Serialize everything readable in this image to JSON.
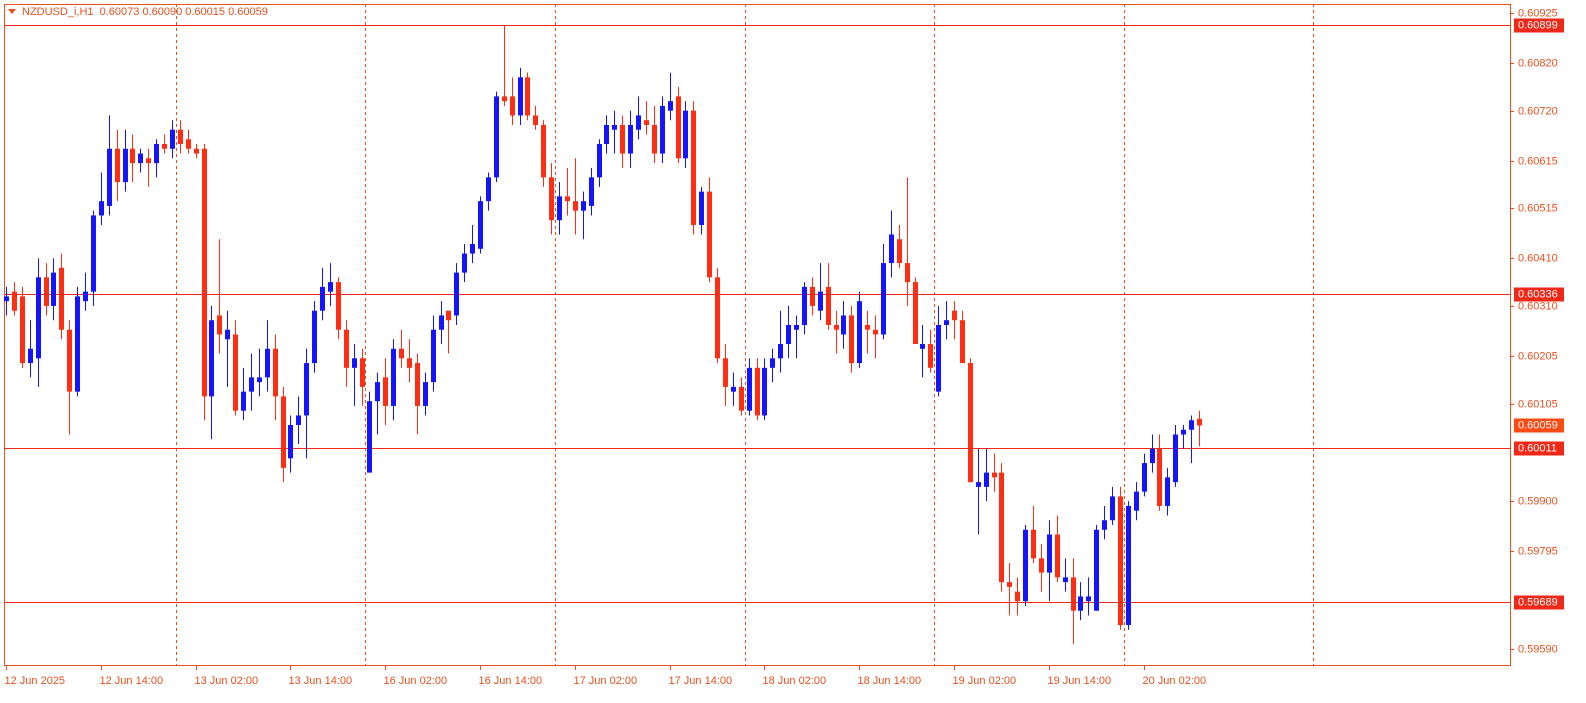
{
  "chart_data": {
    "type": "candlestick",
    "title": "NZDUSD_i,H1  0.60073 0.60090 0.60015 0.60059",
    "categories": [
      "12 Jun 2025",
      null,
      null,
      null,
      null,
      null,
      null,
      null,
      null,
      null,
      null,
      null,
      "12 Jun 14:00",
      null,
      null,
      null,
      null,
      null,
      null,
      null,
      null,
      null,
      null,
      null,
      "13 Jun 02:00",
      null,
      null,
      null,
      null,
      null,
      null,
      null,
      null,
      null,
      null,
      null,
      "13 Jun 14:00",
      null,
      null,
      null,
      null,
      null,
      null,
      null,
      null,
      null,
      null,
      null,
      "16 Jun 02:00",
      null,
      null,
      null,
      null,
      null,
      null,
      null,
      null,
      null,
      null,
      null,
      "16 Jun 14:00",
      null,
      null,
      null,
      null,
      null,
      null,
      null,
      null,
      null,
      null,
      null,
      "17 Jun 02:00",
      null,
      null,
      null,
      null,
      null,
      null,
      null,
      null,
      null,
      null,
      null,
      "17 Jun 14:00",
      null,
      null,
      null,
      null,
      null,
      null,
      null,
      null,
      null,
      null,
      null,
      "18 Jun 02:00",
      null,
      null,
      null,
      null,
      null,
      null,
      null,
      null,
      null,
      null,
      null,
      "18 Jun 14:00",
      null,
      null,
      null,
      null,
      null,
      null,
      null,
      null,
      null,
      null,
      null,
      "19 Jun 02:00",
      null,
      null,
      null,
      null,
      null,
      null,
      null,
      null,
      null,
      null,
      null,
      "19 Jun 14:00",
      null,
      null,
      null,
      null,
      null,
      null,
      null,
      null,
      null,
      null,
      null,
      "20 Jun 02:00",
      null,
      null,
      null,
      null,
      null,
      null,
      null
    ],
    "open": [
      0.6032,
      0.6034,
      0.6033,
      0.6019,
      0.602,
      0.6037,
      0.6031,
      0.6039,
      0.6026,
      0.6013,
      0.6032,
      0.6034,
      0.605,
      0.6052,
      0.6064,
      0.6057,
      0.6064,
      0.6061,
      0.6062,
      0.6061,
      0.6065,
      0.6064,
      0.6068,
      0.6066,
      0.6064,
      0.6064,
      0.6012,
      0.6029,
      0.6024,
      0.6025,
      0.6009,
      0.6013,
      0.6015,
      0.6016,
      0.6022,
      0.6012,
      0.5999,
      0.6006,
      0.6008,
      0.6019,
      0.603,
      0.6034,
      0.6036,
      0.6026,
      0.6018,
      0.602,
      0.5996,
      0.6011,
      0.6016,
      0.601,
      0.6022,
      0.602,
      0.6019,
      0.601,
      0.6015,
      0.6026,
      0.603,
      0.6029,
      0.6038,
      0.6042,
      0.6043,
      0.6053,
      0.6058,
      0.6075,
      0.6075,
      0.6071,
      0.6079,
      0.6071,
      0.6069,
      0.6058,
      0.6049,
      0.6054,
      0.6053,
      0.6051,
      0.6052,
      0.6058,
      0.6065,
      0.6068,
      0.6069,
      0.6063,
      0.6068,
      0.607,
      0.6069,
      0.6063,
      0.6072,
      0.6075,
      0.6062,
      0.6072,
      0.6048,
      0.6055,
      0.6037,
      0.602,
      0.6013,
      0.6014,
      0.6009,
      0.6018,
      0.6008,
      0.6018,
      0.602,
      0.6023,
      0.6026,
      0.6027,
      0.6035,
      0.603,
      0.6035,
      0.6027,
      0.6025,
      0.6029,
      0.6019,
      0.6027,
      0.6026,
      0.6025,
      0.604,
      0.6045,
      0.604,
      0.6036,
      0.6022,
      0.6023,
      0.6013,
      0.6027,
      0.603,
      0.6028,
      0.6019,
      0.5993,
      0.5993,
      0.5996,
      0.5996,
      0.5973,
      0.5971,
      0.5969,
      0.5984,
      0.5978,
      0.5975,
      0.5983,
      0.5973,
      0.5974,
      0.5967,
      0.5969,
      0.5967,
      0.5984,
      0.5986,
      0.5991,
      0.5964,
      0.5988,
      0.5992,
      0.5998,
      0.6001,
      0.5989,
      0.5994,
      0.6004,
      0.6005,
      0.60073
    ],
    "high": [
      0.6035,
      0.6036,
      0.6035,
      0.6028,
      0.6041,
      0.604,
      0.6041,
      0.6042,
      0.6028,
      0.6035,
      0.6038,
      0.6051,
      0.6059,
      0.6071,
      0.6068,
      0.6068,
      0.6067,
      0.6064,
      0.6064,
      0.6066,
      0.6067,
      0.607,
      0.607,
      0.6068,
      0.6065,
      0.6065,
      0.6031,
      0.6045,
      0.603,
      0.6028,
      0.6018,
      0.6021,
      0.6022,
      0.6028,
      0.6025,
      0.6014,
      0.6008,
      0.6012,
      0.6022,
      0.6032,
      0.6039,
      0.604,
      0.6037,
      0.6028,
      0.6023,
      0.6022,
      0.6013,
      0.6017,
      0.602,
      0.6024,
      0.6026,
      0.6024,
      0.6021,
      0.6017,
      0.6029,
      0.6032,
      0.603,
      0.604,
      0.6044,
      0.6048,
      0.6054,
      0.6059,
      0.6076,
      0.609,
      0.6079,
      0.6081,
      0.608,
      0.6073,
      0.607,
      0.6061,
      0.6057,
      0.606,
      0.6062,
      0.6055,
      0.606,
      0.6066,
      0.6071,
      0.6072,
      0.6071,
      0.6072,
      0.6075,
      0.6074,
      0.6073,
      0.6075,
      0.608,
      0.6077,
      0.6074,
      0.6074,
      0.6056,
      0.6058,
      0.6039,
      0.6023,
      0.6017,
      0.6016,
      0.602,
      0.602,
      0.602,
      0.6022,
      0.603,
      0.6031,
      0.6029,
      0.6036,
      0.6037,
      0.604,
      0.604,
      0.603,
      0.6032,
      0.6031,
      0.6034,
      0.603,
      0.6029,
      0.6044,
      0.6051,
      0.6048,
      0.6058,
      0.6037,
      0.6027,
      0.6026,
      0.6031,
      0.6032,
      0.6032,
      0.603,
      0.602,
      0.6001,
      0.6001,
      0.6,
      0.5998,
      0.5977,
      0.5974,
      0.5985,
      0.5989,
      0.5981,
      0.5986,
      0.5987,
      0.5978,
      0.5978,
      0.5973,
      0.5974,
      0.5985,
      0.5989,
      0.5993,
      0.5993,
      0.599,
      0.5994,
      0.6,
      0.6004,
      0.6004,
      0.5997,
      0.6006,
      0.6006,
      0.6008,
      0.6009
    ],
    "low": [
      0.6029,
      0.6029,
      0.6018,
      0.6016,
      0.6014,
      0.6029,
      0.6028,
      0.6024,
      0.6004,
      0.6012,
      0.603,
      0.6031,
      0.6048,
      0.605,
      0.6053,
      0.6055,
      0.6057,
      0.6059,
      0.6056,
      0.6058,
      0.6063,
      0.6062,
      0.6063,
      0.6063,
      0.6062,
      0.6007,
      0.6003,
      0.6021,
      0.6014,
      0.6008,
      0.6007,
      0.6009,
      0.6012,
      0.6013,
      0.6007,
      0.5994,
      0.5996,
      0.6002,
      0.5999,
      0.6017,
      0.6028,
      0.6031,
      0.6024,
      0.6014,
      0.601,
      0.601,
      0.5996,
      0.6004,
      0.6006,
      0.6007,
      0.6018,
      0.6015,
      0.6004,
      0.6008,
      0.6013,
      0.6023,
      0.6021,
      0.6027,
      0.6036,
      0.604,
      0.6042,
      0.6051,
      0.6057,
      0.6073,
      0.6069,
      0.6069,
      0.607,
      0.6068,
      0.6056,
      0.6046,
      0.6046,
      0.605,
      0.6046,
      0.6045,
      0.605,
      0.6056,
      0.6063,
      0.6063,
      0.606,
      0.606,
      0.6066,
      0.6067,
      0.6061,
      0.6061,
      0.607,
      0.6061,
      0.606,
      0.6046,
      0.6046,
      0.6036,
      0.6019,
      0.601,
      0.601,
      0.6008,
      0.6008,
      0.6007,
      0.6007,
      0.6015,
      0.6017,
      0.602,
      0.602,
      0.6025,
      0.6029,
      0.6028,
      0.6026,
      0.6021,
      0.6022,
      0.6017,
      0.6018,
      0.6021,
      0.602,
      0.6024,
      0.6037,
      0.6039,
      0.6031,
      0.6023,
      0.6016,
      0.6017,
      0.6012,
      0.6024,
      0.6024,
      0.6019,
      0.5994,
      0.5983,
      0.599,
      0.5992,
      0.5971,
      0.5966,
      0.5966,
      0.5968,
      0.5977,
      0.5971,
      0.5969,
      0.5973,
      0.5971,
      0.596,
      0.5965,
      0.5966,
      0.5967,
      0.5982,
      0.5985,
      0.5963,
      0.5963,
      0.5986,
      0.5991,
      0.5996,
      0.5988,
      0.5987,
      0.5993,
      0.6001,
      0.5998,
      0.60015
    ],
    "close": [
      0.6033,
      0.603,
      0.6019,
      0.6022,
      0.6037,
      0.6031,
      0.6038,
      0.6026,
      0.6013,
      0.6033,
      0.6034,
      0.605,
      0.6053,
      0.6064,
      0.6057,
      0.6064,
      0.6061,
      0.6063,
      0.6061,
      0.6065,
      0.6064,
      0.6068,
      0.6065,
      0.6064,
      0.6063,
      0.6012,
      0.6028,
      0.6025,
      0.6026,
      0.6009,
      0.6013,
      0.6016,
      0.6016,
      0.6022,
      0.6012,
      0.5997,
      0.6006,
      0.6008,
      0.6019,
      0.603,
      0.6035,
      0.6036,
      0.6026,
      0.6018,
      0.602,
      0.6014,
      0.6011,
      0.6015,
      0.601,
      0.6022,
      0.602,
      0.6018,
      0.601,
      0.6015,
      0.6026,
      0.6029,
      0.6028,
      0.6038,
      0.6042,
      0.6044,
      0.6053,
      0.6058,
      0.6075,
      0.6074,
      0.6071,
      0.6079,
      0.6071,
      0.6069,
      0.6058,
      0.6049,
      0.6054,
      0.6053,
      0.6051,
      0.6053,
      0.6058,
      0.6065,
      0.6069,
      0.6069,
      0.6063,
      0.6069,
      0.6071,
      0.6069,
      0.6063,
      0.6073,
      0.6074,
      0.6062,
      0.6072,
      0.6048,
      0.6055,
      0.6037,
      0.602,
      0.6014,
      0.6014,
      0.6009,
      0.6018,
      0.6008,
      0.6018,
      0.602,
      0.6023,
      0.6027,
      0.6027,
      0.6035,
      0.6031,
      0.6034,
      0.6027,
      0.6026,
      0.6029,
      0.6019,
      0.6032,
      0.6026,
      0.6025,
      0.604,
      0.6046,
      0.604,
      0.6036,
      0.6023,
      0.6023,
      0.6018,
      0.6027,
      0.6028,
      0.6028,
      0.6019,
      0.5994,
      0.5994,
      0.5996,
      0.5995,
      0.5973,
      0.5972,
      0.5969,
      0.5984,
      0.5978,
      0.5975,
      0.5983,
      0.5974,
      0.5974,
      0.5967,
      0.597,
      0.597,
      0.5984,
      0.5986,
      0.5991,
      0.5964,
      0.5989,
      0.5992,
      0.5998,
      0.6001,
      0.5989,
      0.5995,
      0.6004,
      0.6005,
      0.6007,
      0.60059
    ],
    "bull_color": "#1414ff",
    "bear_color": "#ff2d12",
    "ylim": [
      0.59556,
      0.60944
    ],
    "yticks": [
      0.60925,
      {
        "value": 0.6082,
        "label": "0.60820"
      },
      {
        "value": 0.6072,
        "label": "0.60720"
      },
      0.60615,
      0.60515,
      {
        "value": 0.6041,
        "label": "0.60410"
      },
      {
        "value": 0.6031,
        "label": "0.60310"
      },
      0.60205,
      0.60105,
      {
        "value": 0.599,
        "label": "0.59900"
      },
      0.59795,
      {
        "value": 0.5959,
        "label": "0.59590"
      }
    ],
    "levels": [
      0.60899,
      0.60336,
      0.60011,
      0.59689
    ],
    "level_color": "#f02818",
    "current_price": 0.60059,
    "current_price_color": "#ff4a14",
    "axis_color": "#e8501e"
  }
}
